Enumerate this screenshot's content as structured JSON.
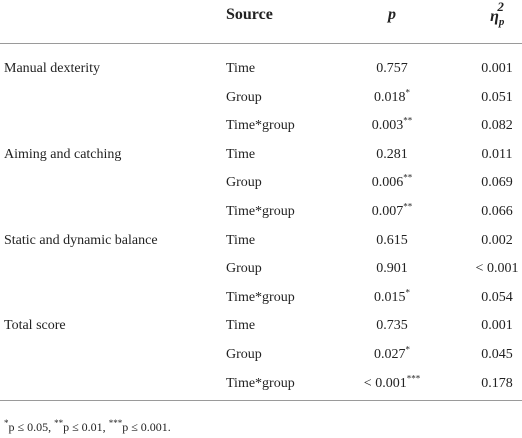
{
  "header": {
    "source": "Source",
    "p": "p",
    "eta": "η",
    "eta_sub": "p",
    "eta_sup": "2"
  },
  "groups": [
    {
      "label": "Manual dexterity",
      "rows": [
        {
          "source": "Time",
          "p": "0.757",
          "eta": "0.001"
        },
        {
          "source": "Group",
          "p": "0.018",
          "stars": "*",
          "eta": "0.051"
        },
        {
          "source": "Time*group",
          "p": "0.003",
          "stars": "**",
          "eta": "0.082"
        }
      ]
    },
    {
      "label": "Aiming and catching",
      "rows": [
        {
          "source": "Time",
          "p": "0.281",
          "eta": "0.011"
        },
        {
          "source": "Group",
          "p": "0.006",
          "stars": "**",
          "eta": "0.069"
        },
        {
          "source": "Time*group",
          "p": "0.007",
          "stars": "**",
          "eta": "0.066"
        }
      ]
    },
    {
      "label": "Static and dynamic balance",
      "rows": [
        {
          "source": "Time",
          "p": "0.615",
          "eta": "0.002"
        },
        {
          "source": "Group",
          "p": "0.901",
          "eta": "< 0.001"
        },
        {
          "source": "Time*group",
          "p": "0.015",
          "stars": "*",
          "eta": "0.054"
        }
      ]
    },
    {
      "label": "Total score",
      "rows": [
        {
          "source": "Time",
          "p": "0.735",
          "eta": "0.001"
        },
        {
          "source": "Group",
          "p": "0.027",
          "stars": "*",
          "eta": "0.045"
        },
        {
          "source": "Time*group",
          "p": "< 0.001",
          "stars": "***",
          "eta": "0.178"
        }
      ]
    }
  ],
  "notes": [
    {
      "stars": "*",
      "text": "p ≤ 0.05,"
    },
    {
      "stars": "**",
      "text": "p ≤ 0.01,"
    },
    {
      "stars": "***",
      "text": "p ≤ 0.001."
    }
  ]
}
